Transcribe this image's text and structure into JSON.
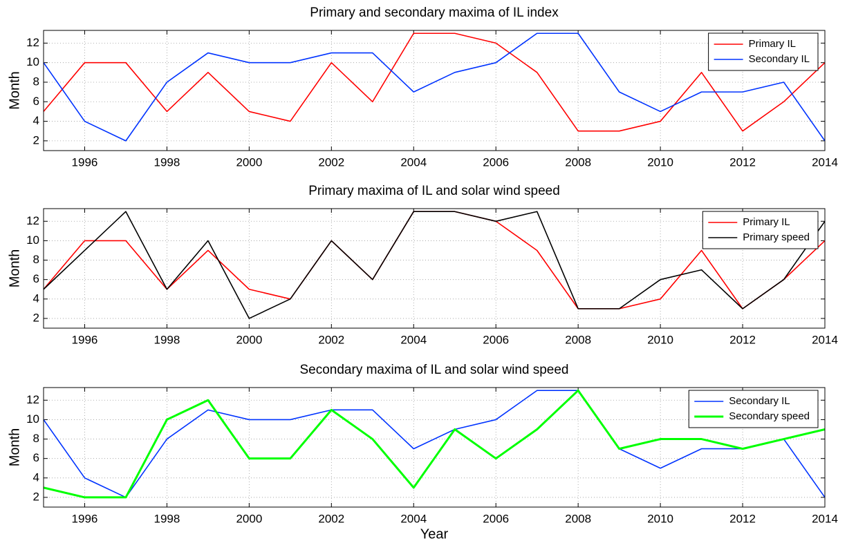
{
  "chart_data": [
    {
      "type": "line",
      "title": "Primary and secondary maxima of IL index",
      "ylabel": "Month",
      "x": [
        1995,
        1996,
        1997,
        1998,
        1999,
        2000,
        2001,
        2002,
        2003,
        2004,
        2005,
        2006,
        2007,
        2008,
        2009,
        2010,
        2011,
        2012,
        2013,
        2014
      ],
      "series": [
        {
          "name": "Primary IL",
          "color": "#ff0000",
          "values": [
            5,
            10,
            10,
            5,
            9,
            5,
            4,
            10,
            6,
            13,
            13,
            12,
            9,
            3,
            3,
            4,
            9,
            3,
            6,
            10
          ]
        },
        {
          "name": "Secondary IL",
          "color": "#0033ff",
          "values": [
            10,
            4,
            2,
            8,
            11,
            10,
            10,
            11,
            11,
            7,
            9,
            10,
            13,
            13,
            7,
            5,
            7,
            7,
            8,
            2
          ]
        }
      ],
      "xlim": [
        1995,
        2014
      ],
      "ylim": [
        1,
        13.3
      ],
      "xticks": [
        1996,
        1998,
        2000,
        2002,
        2004,
        2006,
        2008,
        2010,
        2012,
        2014
      ],
      "yticks": [
        2,
        4,
        6,
        8,
        10,
        12
      ],
      "grid": true,
      "legend": "upper right"
    },
    {
      "type": "line",
      "title": "Primary maxima of IL  and  solar wind speed",
      "ylabel": "Month",
      "x": [
        1995,
        1996,
        1997,
        1998,
        1999,
        2000,
        2001,
        2002,
        2003,
        2004,
        2005,
        2006,
        2007,
        2008,
        2009,
        2010,
        2011,
        2012,
        2013,
        2014
      ],
      "series": [
        {
          "name": "Primary IL",
          "color": "#ff0000",
          "values": [
            5,
            10,
            10,
            5,
            9,
            5,
            4,
            10,
            6,
            13,
            13,
            12,
            9,
            3,
            3,
            4,
            9,
            3,
            6,
            10
          ]
        },
        {
          "name": "Primary speed",
          "color": "#000000",
          "values": [
            5,
            9,
            13,
            5,
            10,
            2,
            4,
            10,
            6,
            13,
            13,
            12,
            13,
            3,
            3,
            6,
            7,
            3,
            6,
            12
          ]
        }
      ],
      "xlim": [
        1995,
        2014
      ],
      "ylim": [
        1,
        13.3
      ],
      "xticks": [
        1996,
        1998,
        2000,
        2002,
        2004,
        2006,
        2008,
        2010,
        2012,
        2014
      ],
      "yticks": [
        2,
        4,
        6,
        8,
        10,
        12
      ],
      "grid": true,
      "legend": "upper right"
    },
    {
      "type": "line",
      "title": "Secondary maxima of IL and solar wind speed",
      "ylabel": "Month",
      "xlabel": "Year",
      "x": [
        1995,
        1996,
        1997,
        1998,
        1999,
        2000,
        2001,
        2002,
        2003,
        2004,
        2005,
        2006,
        2007,
        2008,
        2009,
        2010,
        2011,
        2012,
        2013,
        2014
      ],
      "series": [
        {
          "name": "Secondary IL",
          "color": "#0033ff",
          "values": [
            10,
            4,
            2,
            8,
            11,
            10,
            10,
            11,
            11,
            7,
            9,
            10,
            13,
            13,
            7,
            5,
            7,
            7,
            8,
            2
          ]
        },
        {
          "name": "Secondary speed",
          "color": "#00ff00",
          "values": [
            3,
            2,
            2,
            10,
            12,
            6,
            6,
            11,
            8,
            3,
            9,
            6,
            9,
            13,
            7,
            8,
            8,
            7,
            8,
            9
          ]
        }
      ],
      "xlim": [
        1995,
        2014
      ],
      "ylim": [
        1,
        13.3
      ],
      "xticks": [
        1996,
        1998,
        2000,
        2002,
        2004,
        2006,
        2008,
        2010,
        2012,
        2014
      ],
      "yticks": [
        2,
        4,
        6,
        8,
        10,
        12
      ],
      "grid": true,
      "legend": "upper right"
    }
  ]
}
